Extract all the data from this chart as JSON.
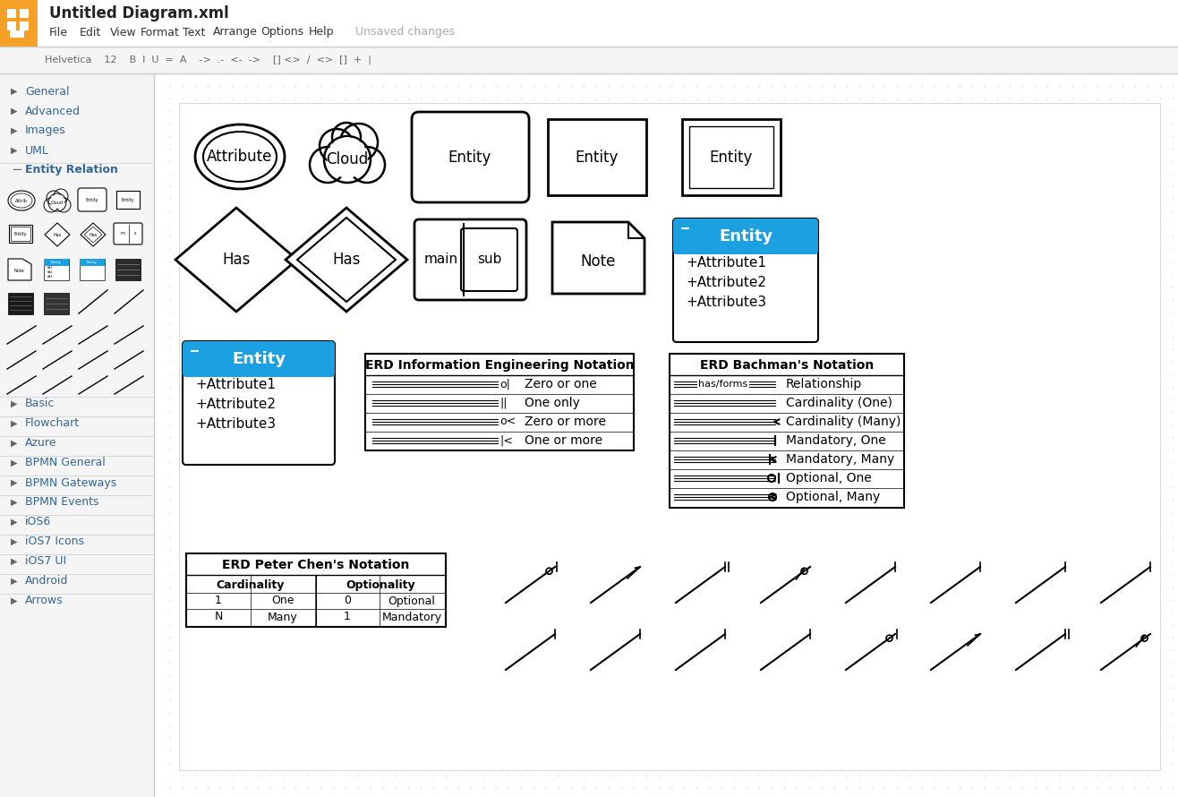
{
  "bg_color": "#e8e8e8",
  "canvas_bg": "#ffffff",
  "sidebar_bg": "#f0f0f0",
  "orange": "#f5a128",
  "blue_header": "#1ba1e2",
  "title": "Untitled Diagram.xml",
  "menu_items": [
    "File",
    "Edit",
    "View",
    "Format",
    "Text",
    "Arrange",
    "Options",
    "Help"
  ],
  "sidebar_items_collapsed": [
    "General",
    "Advanced",
    "Images",
    "UML"
  ],
  "sidebar_expanded": "Entity Relation",
  "sidebar_items_below": [
    "Basic",
    "Flowchart",
    "Azure",
    "BPMN General",
    "BPMN Gateways",
    "BPMN Events",
    "iOS6",
    "iOS7 Icons",
    "iOS7 UI",
    "Android",
    "Arrows"
  ],
  "erd_ie_title": "ERD Information Engineering Notation",
  "erd_ie_rows": [
    "Zero or one",
    "One only",
    "Zero or more",
    "One or more"
  ],
  "erd_bachman_title": "ERD Bachman's Notation",
  "erd_bachman_rows": [
    "Relationship",
    "Cardinality (One)",
    "Cardinality (Many)",
    "Mandatory, One",
    "Mandatory, Many",
    "Optional, One",
    "Optional, Many"
  ],
  "erd_chen_title": "ERD Peter Chen's Notation",
  "erd_chen_col_headers": [
    "Cardinality",
    "Optionality"
  ],
  "erd_chen_rows": [
    [
      "1",
      "One",
      "0",
      "Optional"
    ],
    [
      "N",
      "Many",
      "1",
      "Mandatory"
    ]
  ],
  "entity_attrs": [
    "+Attribute1",
    "+Attribute2",
    "+Attribute3"
  ]
}
